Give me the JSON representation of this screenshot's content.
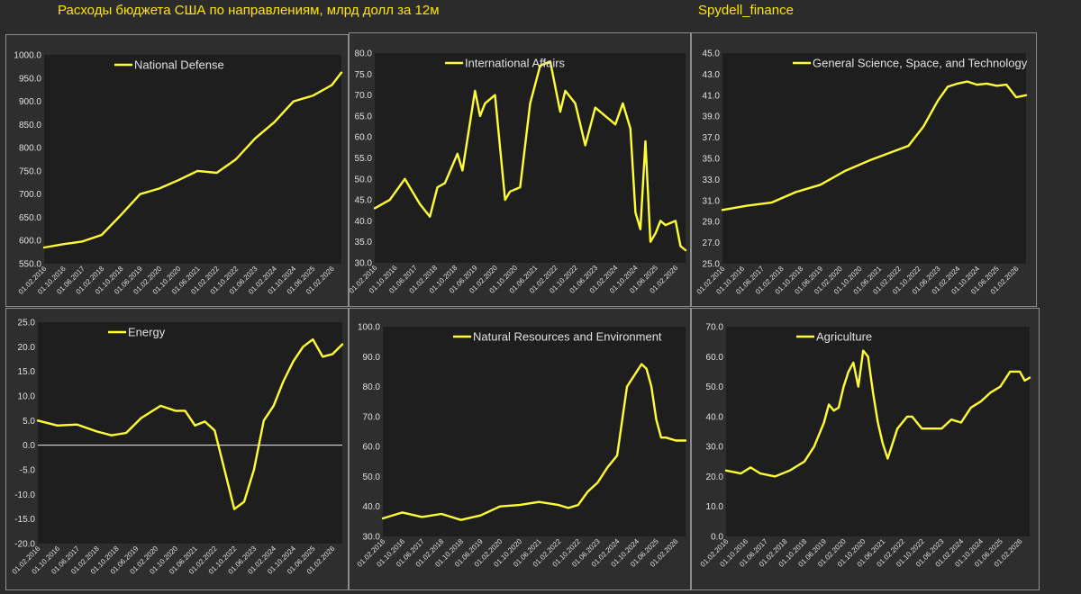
{
  "header": {
    "title": "Расходы бюджета США по направлениям, млрд долл за 12м",
    "source": "Spydell_finance"
  },
  "colors": {
    "background": "#2b2b2b",
    "plot_area": "#1e1e1e",
    "line": "#ffff33",
    "axis_text": "#e0e0e0",
    "header_text": "#ffe600"
  },
  "x_tick_labels": [
    "01.02.2016",
    "01.10.2016",
    "01.06.2017",
    "01.02.2018",
    "01.10.2018",
    "01.06.2019",
    "01.02.2020",
    "01.10.2020",
    "01.06.2021",
    "01.02.2022",
    "01.10.2022",
    "01.06.2023",
    "01.02.2024",
    "01.10.2024",
    "01.06.2025",
    "01.02.2026"
  ],
  "chart_data": [
    {
      "type": "line",
      "legend": "National Defense",
      "ylim": [
        550,
        1000
      ],
      "yticks": [
        "550.0",
        "600.0",
        "650.0",
        "700.0",
        "750.0",
        "800.0",
        "850.0",
        "900.0",
        "950.0",
        "1000.0"
      ],
      "x": [
        0,
        8,
        16,
        24,
        32,
        40,
        48,
        56,
        64,
        72,
        80,
        88,
        96,
        104,
        112,
        120,
        124
      ],
      "values": [
        585,
        592,
        598,
        612,
        655,
        700,
        712,
        730,
        750,
        746,
        775,
        820,
        855,
        900,
        912,
        935,
        962
      ]
    },
    {
      "type": "line",
      "legend": "International Affairs",
      "ylim": [
        30,
        80
      ],
      "yticks": [
        "30.0",
        "35.0",
        "40.0",
        "45.0",
        "50.0",
        "55.0",
        "60.0",
        "65.0",
        "70.0",
        "75.0",
        "80.0"
      ],
      "x": [
        0,
        6,
        12,
        18,
        22,
        25,
        28,
        33,
        35,
        40,
        42,
        44,
        48,
        52,
        54,
        58,
        62,
        66,
        70,
        74,
        76,
        80,
        84,
        88,
        92,
        96,
        99,
        102,
        104,
        106,
        108,
        110,
        112,
        114,
        116,
        120,
        122,
        124
      ],
      "values": [
        43,
        45,
        50,
        44,
        41,
        48,
        49,
        56,
        52,
        71,
        65,
        68,
        70,
        45,
        47,
        48,
        68,
        77,
        78,
        66,
        71,
        68,
        58,
        67,
        65,
        63,
        68,
        62,
        42,
        38,
        59,
        35,
        37,
        40,
        39,
        40,
        34,
        33
      ]
    },
    {
      "type": "line",
      "legend": "General Science, Space, and Technology",
      "ylim": [
        25,
        45
      ],
      "yticks": [
        "25.0",
        "27.0",
        "29.0",
        "31.0",
        "33.0",
        "35.0",
        "37.0",
        "39.0",
        "41.0",
        "43.0",
        "45.0"
      ],
      "x": [
        0,
        10,
        20,
        30,
        40,
        50,
        60,
        68,
        76,
        82,
        88,
        92,
        96,
        100,
        104,
        108,
        112,
        116,
        120,
        124
      ],
      "values": [
        30.1,
        30.5,
        30.8,
        31.8,
        32.5,
        33.8,
        34.8,
        35.5,
        36.2,
        38.0,
        40.5,
        41.8,
        42.1,
        42.3,
        42.0,
        42.1,
        41.9,
        42.0,
        40.8,
        41.0
      ]
    },
    {
      "type": "line",
      "legend": "Energy",
      "ylim": [
        -20,
        25
      ],
      "yticks": [
        "-20.0",
        "-15.0",
        "-10.0",
        "-5.0",
        "0.0",
        "5.0",
        "10.0",
        "15.0",
        "20.0",
        "25.0"
      ],
      "x": [
        0,
        8,
        16,
        24,
        30,
        36,
        42,
        50,
        56,
        60,
        64,
        68,
        72,
        76,
        80,
        84,
        88,
        92,
        96,
        100,
        104,
        108,
        112,
        116,
        120,
        124
      ],
      "values": [
        5.0,
        4.0,
        4.2,
        2.8,
        2.0,
        2.5,
        5.5,
        8.0,
        7.0,
        7.0,
        4.0,
        4.8,
        3.0,
        -5.0,
        -13.0,
        -11.5,
        -5.0,
        5.0,
        8.0,
        13.0,
        17.0,
        20.0,
        21.5,
        18.0,
        18.5,
        20.5
      ]
    },
    {
      "type": "line",
      "legend": "Natural Resources and Environment",
      "ylim": [
        30,
        100
      ],
      "yticks": [
        "30.0",
        "40.0",
        "50.0",
        "60.0",
        "70.0",
        "80.0",
        "90.0",
        "100.0"
      ],
      "x": [
        0,
        8,
        16,
        24,
        32,
        40,
        48,
        56,
        64,
        72,
        76,
        80,
        84,
        88,
        92,
        96,
        100,
        104,
        106,
        108,
        110,
        112,
        114,
        116,
        120,
        124
      ],
      "values": [
        36,
        38,
        36.5,
        37.5,
        35.5,
        37,
        40,
        40.5,
        41.5,
        40.5,
        39.5,
        40.5,
        45,
        48,
        53,
        57,
        80,
        85,
        87.5,
        86,
        80,
        69,
        63,
        63,
        62,
        62
      ]
    },
    {
      "type": "line",
      "legend": "Agriculture",
      "ylim": [
        0,
        70
      ],
      "yticks": [
        "0.0",
        "10.0",
        "20.0",
        "30.0",
        "40.0",
        "50.0",
        "60.0",
        "70.0"
      ],
      "x": [
        0,
        6,
        10,
        14,
        20,
        26,
        32,
        36,
        40,
        42,
        44,
        46,
        48,
        50,
        52,
        54,
        56,
        58,
        60,
        62,
        64,
        66,
        70,
        74,
        76,
        80,
        84,
        88,
        92,
        96,
        100,
        104,
        108,
        112,
        116,
        120,
        122,
        124
      ],
      "values": [
        22,
        21,
        23,
        21,
        20,
        22,
        25,
        30,
        38,
        44,
        42,
        43,
        50,
        55,
        58,
        50,
        62,
        60,
        48,
        38,
        31,
        26,
        36,
        40,
        40,
        36,
        36,
        36,
        39,
        38,
        43,
        45,
        48,
        50,
        55,
        55,
        52,
        53
      ]
    }
  ]
}
